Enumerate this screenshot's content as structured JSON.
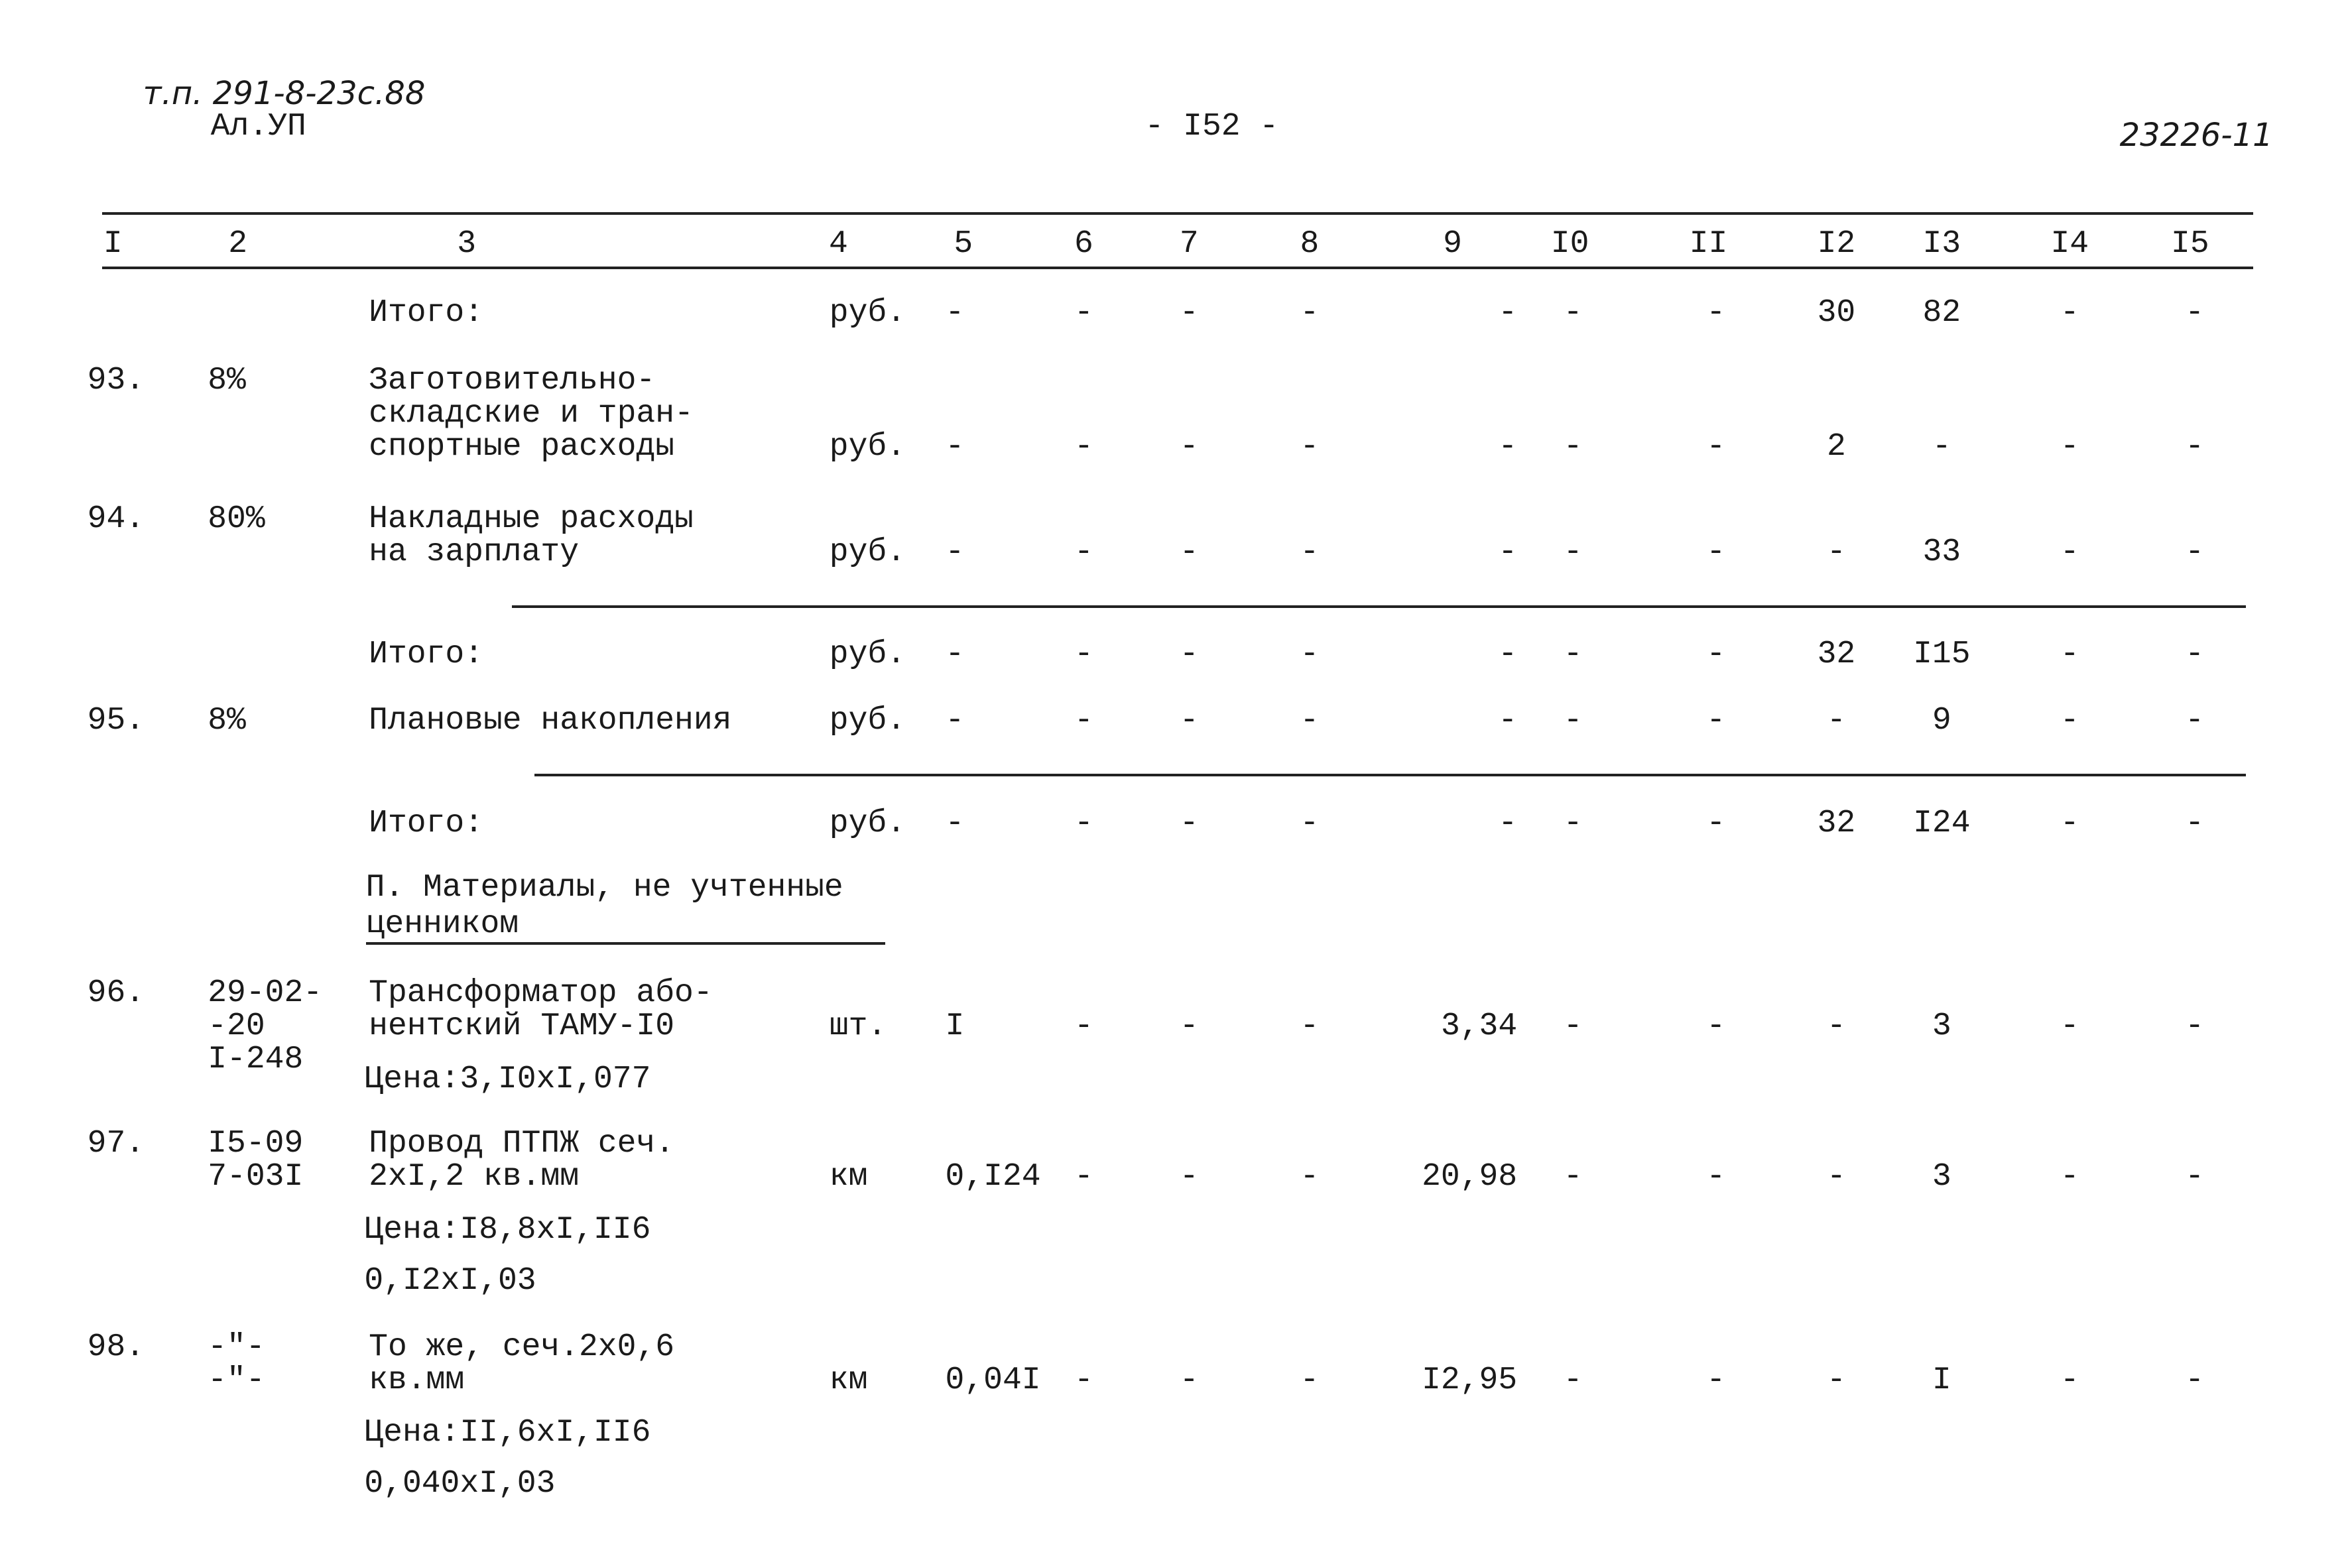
{
  "header": {
    "code": "т.п. 291-8-23с.88",
    "album": "Ал.УП",
    "page": "- I52 -",
    "number": "23226-11"
  },
  "columns": [
    "I",
    "2",
    "3",
    "4",
    "5",
    "6",
    "7",
    "8",
    "9",
    "I0",
    "II",
    "I2",
    "I3",
    "I4",
    "I5"
  ],
  "rows": [
    {
      "name": [
        "Итого:"
      ],
      "unit": "руб.",
      "cells": [
        "-",
        "-",
        "-",
        "-",
        "-",
        "-",
        "-",
        "30",
        "82",
        "-",
        "-"
      ]
    },
    {
      "n": "93.",
      "code": [
        "8%"
      ],
      "name": [
        "Заготовительно-",
        "складские и тран-",
        "спортные расходы"
      ],
      "unit": "руб.",
      "cells": [
        "-",
        "-",
        "-",
        "-",
        "-",
        "-",
        "-",
        "2",
        "-",
        "-",
        "-"
      ]
    },
    {
      "n": "94.",
      "code": [
        "80%"
      ],
      "name": [
        "Накладные расходы",
        "на зарплату"
      ],
      "unit": "руб.",
      "cells": [
        "-",
        "-",
        "-",
        "-",
        "-",
        "-",
        "-",
        "-",
        "33",
        "-",
        "-"
      ]
    },
    {
      "name": [
        "Итого:"
      ],
      "unit": "руб.",
      "cells": [
        "-",
        "-",
        "-",
        "-",
        "-",
        "-",
        "-",
        "32",
        "I15",
        "-",
        "-"
      ]
    },
    {
      "n": "95.",
      "code": [
        "8%"
      ],
      "name": [
        "Плановые накопления"
      ],
      "unit": "руб.",
      "cells": [
        "-",
        "-",
        "-",
        "-",
        "-",
        "-",
        "-",
        "-",
        "9",
        "-",
        "-"
      ]
    },
    {
      "name": [
        "Итого:"
      ],
      "unit": "руб.",
      "cells": [
        "-",
        "-",
        "-",
        "-",
        "-",
        "-",
        "-",
        "32",
        "I24",
        "-",
        "-"
      ]
    },
    {
      "n": "96.",
      "code": [
        "29-02-",
        "-20",
        "I-248"
      ],
      "name": [
        "Трансформатор або-",
        "нентский ТАМУ-I0"
      ],
      "extra": [
        "Цена:3,I0хI,077"
      ],
      "unit": "шт.",
      "cells": [
        "I",
        "-",
        "-",
        "-",
        "3,34",
        "-",
        "-",
        "-",
        "3",
        "-",
        "-"
      ]
    },
    {
      "n": "97.",
      "code": [
        "I5-09",
        "7-03I"
      ],
      "name": [
        "Провод ПТПЖ сеч.",
        "2хI,2 кв.мм"
      ],
      "extra": [
        "Цена:I8,8хI,II6",
        "0,I2хI,03"
      ],
      "unit": "км",
      "cells": [
        "0,I24",
        "-",
        "-",
        "-",
        "20,98",
        "-",
        "-",
        "-",
        "3",
        "-",
        "-"
      ]
    },
    {
      "n": "98.",
      "code": [
        "-\"-",
        "-\"-"
      ],
      "name": [
        "То же, сеч.2х0,6",
        "кв.мм"
      ],
      "extra": [
        "Цена:II,6хI,II6",
        "0,040хI,03"
      ],
      "unit": "км",
      "cells": [
        "0,04I",
        "-",
        "-",
        "-",
        "I2,95",
        "-",
        "-",
        "-",
        "I",
        "-",
        "-"
      ]
    }
  ],
  "section": [
    "П. Материалы, не учтенные",
    "ценником"
  ]
}
